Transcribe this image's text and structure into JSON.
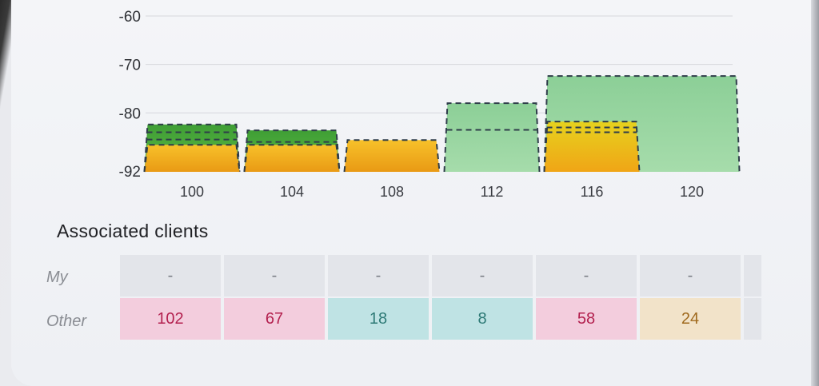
{
  "chart_data": {
    "type": "bar",
    "y_ticks": [
      "-60",
      "-70",
      "-80",
      "-92"
    ],
    "ylim": [
      -92,
      -57
    ],
    "grid": true,
    "categories": [
      "100",
      "104",
      "108",
      "112",
      "116",
      "120"
    ],
    "channels": [
      {
        "center": 100,
        "width": 4,
        "segments": [
          {
            "top": -86.6,
            "color": "#f0a91a"
          },
          {
            "top": -82.4,
            "color": "#4fae3c",
            "dashed": [
              -84.0,
              -85.5
            ]
          }
        ]
      },
      {
        "center": 104,
        "width": 4,
        "segments": [
          {
            "top": -86.6,
            "color": "#f0a91a"
          },
          {
            "top": -83.6,
            "color": "#4fae3c",
            "dashed": [
              -86.0
            ]
          }
        ]
      },
      {
        "center": 108,
        "width": 4,
        "segments": [
          {
            "top": -85.6,
            "color": "#f0a91a"
          }
        ]
      },
      {
        "center": 112,
        "width": 4,
        "segments": [
          {
            "top": -78.0,
            "color": "#8fd39a",
            "dashed": [
              -83.5
            ]
          }
        ]
      },
      {
        "center": 118,
        "width": 8,
        "segments": [
          {
            "top": -72.4,
            "color": "#8fd39a"
          }
        ]
      },
      {
        "center": 116,
        "width": 4,
        "segments": [
          {
            "top": -81.8,
            "color": "#f2c21a",
            "dashed": [
              -83.0,
              -84.0
            ]
          }
        ]
      }
    ]
  },
  "section_title": "Associated clients",
  "rows": {
    "my_label": "My",
    "other_label": "Other",
    "my_values": [
      "-",
      "-",
      "-",
      "-",
      "-",
      "-"
    ],
    "other_values": [
      {
        "v": "102",
        "c": "pink"
      },
      {
        "v": "67",
        "c": "pink"
      },
      {
        "v": "18",
        "c": "teal"
      },
      {
        "v": "8",
        "c": "teal"
      },
      {
        "v": "58",
        "c": "pink"
      },
      {
        "v": "24",
        "c": "tan"
      }
    ]
  }
}
